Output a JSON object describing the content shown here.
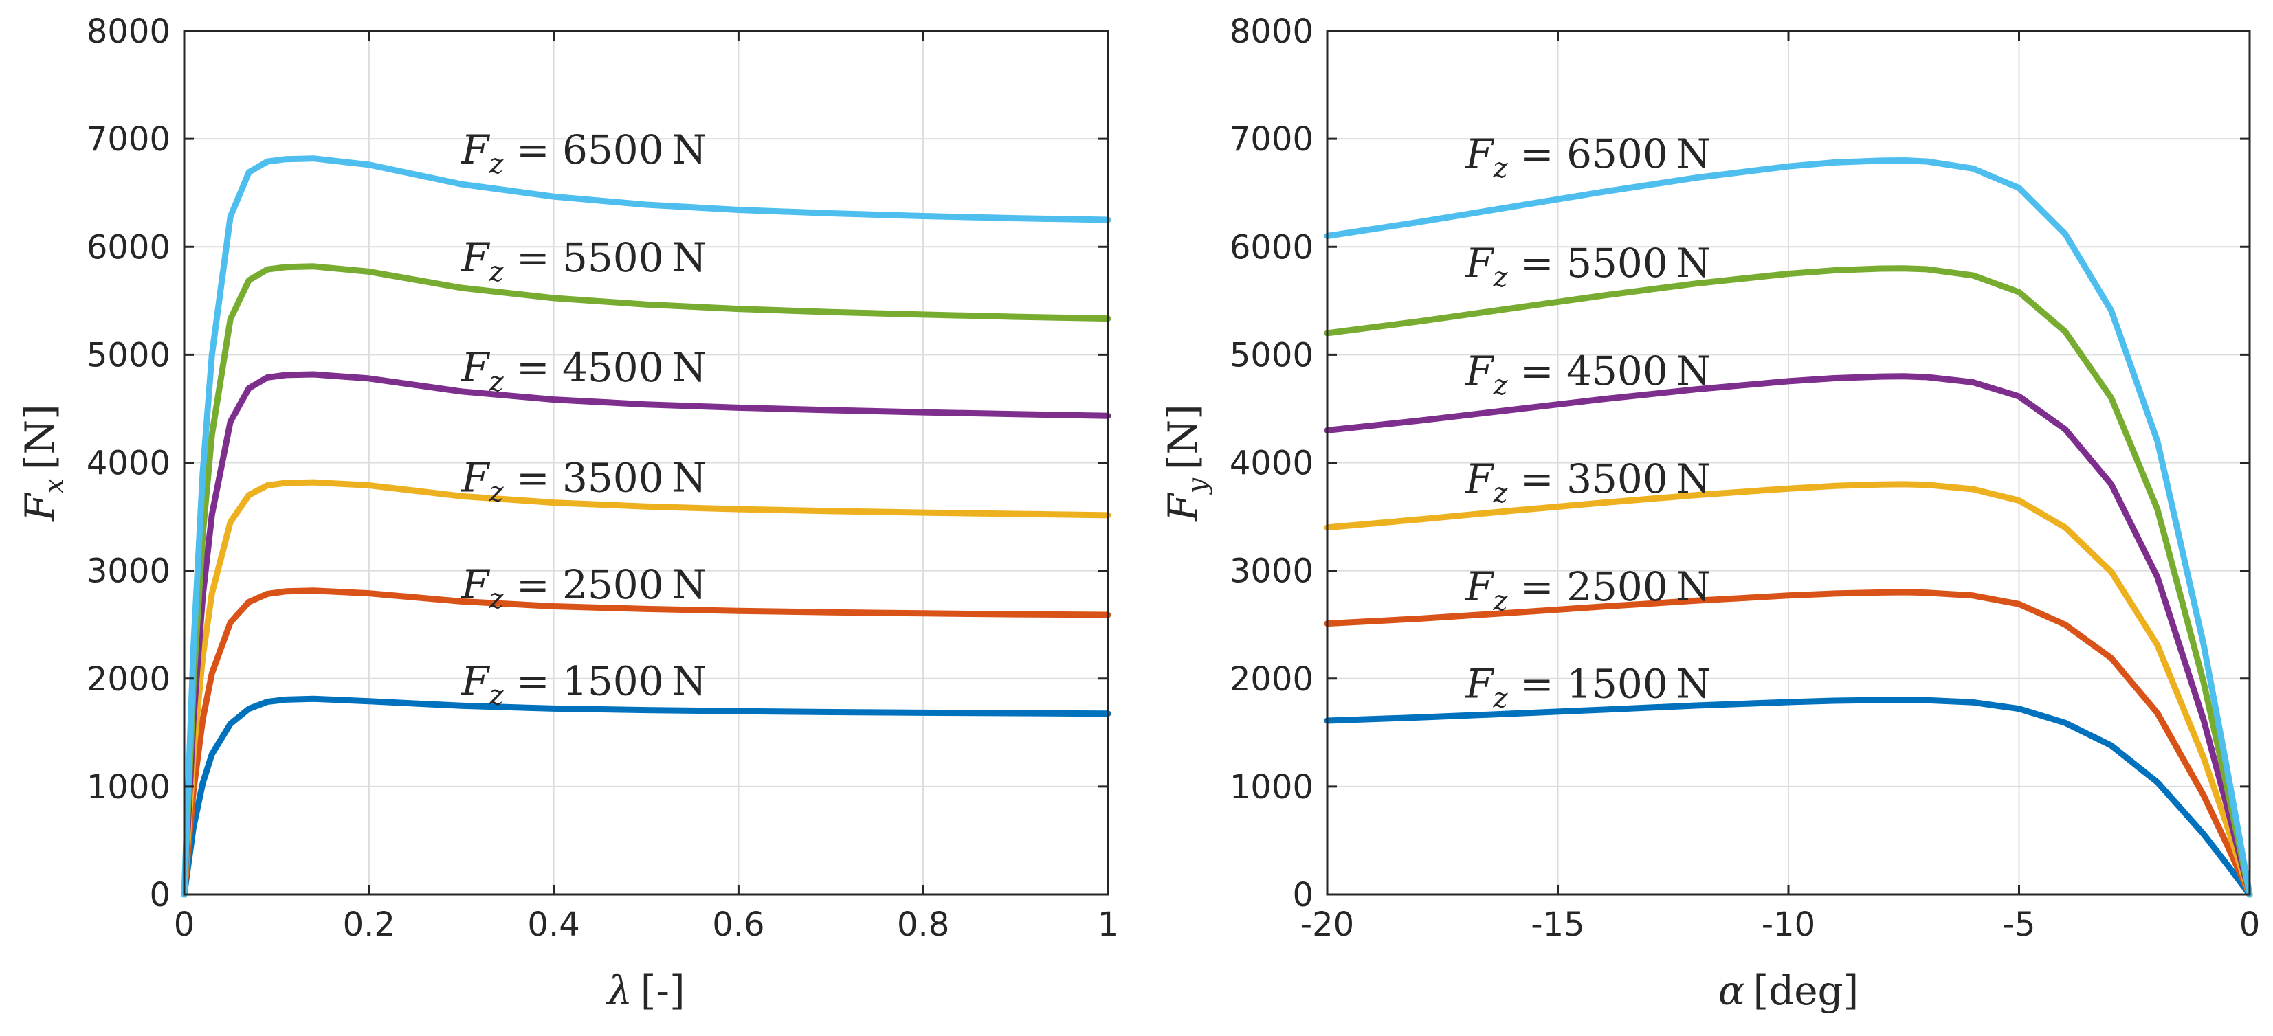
{
  "chart_data": [
    {
      "type": "line",
      "xlabel": {
        "symbol": "λ",
        "unit": "[-]"
      },
      "ylabel": {
        "symbol": "F",
        "sub": "x",
        "unit": "[N]"
      },
      "xlim": [
        0,
        1
      ],
      "ylim": [
        0,
        8000
      ],
      "xticks": [
        0,
        0.2,
        0.4,
        0.6,
        0.8,
        1
      ],
      "xtick_labels": [
        "0",
        "0.2",
        "0.4",
        "0.6",
        "0.8",
        "1"
      ],
      "yticks": [
        0,
        1000,
        2000,
        3000,
        4000,
        5000,
        6000,
        7000,
        8000
      ],
      "ytick_labels": [
        "0",
        "1000",
        "2000",
        "3000",
        "4000",
        "5000",
        "6000",
        "7000",
        "8000"
      ],
      "grid": true,
      "annotation_anchor_x": 0.3,
      "series": [
        {
          "name": "Fz = 1500 N",
          "color": "#0072BD",
          "x": [
            0,
            0.01,
            0.02,
            0.03,
            0.05,
            0.07,
            0.09,
            0.11,
            0.14,
            0.2,
            0.3,
            0.4,
            0.5,
            0.6,
            0.7,
            0.8,
            0.9,
            1.0
          ],
          "y": [
            0,
            620,
            1030,
            1300,
            1580,
            1720,
            1785,
            1805,
            1812,
            1790,
            1748,
            1722,
            1708,
            1698,
            1690,
            1684,
            1680,
            1676
          ],
          "label": {
            "value": "1500",
            "y_pos": 1975
          }
        },
        {
          "name": "Fz = 2500 N",
          "color": "#D95319",
          "x": [
            0,
            0.01,
            0.02,
            0.03,
            0.05,
            0.07,
            0.09,
            0.11,
            0.14,
            0.2,
            0.3,
            0.4,
            0.5,
            0.6,
            0.7,
            0.8,
            0.9,
            1.0
          ],
          "y": [
            0,
            960,
            1620,
            2050,
            2520,
            2710,
            2785,
            2808,
            2815,
            2790,
            2715,
            2670,
            2645,
            2627,
            2614,
            2604,
            2596,
            2590
          ],
          "label": {
            "value": "2500",
            "y_pos": 2870
          }
        },
        {
          "name": "Fz = 3500 N",
          "color": "#EDB120",
          "x": [
            0,
            0.01,
            0.02,
            0.03,
            0.05,
            0.07,
            0.09,
            0.11,
            0.14,
            0.2,
            0.3,
            0.4,
            0.5,
            0.6,
            0.7,
            0.8,
            0.9,
            1.0
          ],
          "y": [
            0,
            1300,
            2200,
            2790,
            3450,
            3700,
            3790,
            3812,
            3818,
            3790,
            3690,
            3630,
            3594,
            3570,
            3552,
            3538,
            3526,
            3514
          ],
          "label": {
            "value": "3500",
            "y_pos": 3860
          }
        },
        {
          "name": "Fz = 4500 N",
          "color": "#7E2F8E",
          "x": [
            0,
            0.01,
            0.02,
            0.03,
            0.05,
            0.07,
            0.09,
            0.11,
            0.14,
            0.2,
            0.3,
            0.4,
            0.5,
            0.6,
            0.7,
            0.8,
            0.9,
            1.0
          ],
          "y": [
            0,
            1620,
            2760,
            3520,
            4380,
            4690,
            4790,
            4812,
            4818,
            4780,
            4660,
            4585,
            4540,
            4510,
            4487,
            4467,
            4450,
            4435
          ],
          "label": {
            "value": "4500",
            "y_pos": 4880
          }
        },
        {
          "name": "Fz = 5500 N",
          "color": "#77AC30",
          "x": [
            0,
            0.01,
            0.02,
            0.03,
            0.05,
            0.07,
            0.09,
            0.11,
            0.14,
            0.2,
            0.3,
            0.4,
            0.5,
            0.6,
            0.7,
            0.8,
            0.9,
            1.0
          ],
          "y": [
            0,
            1950,
            3330,
            4260,
            5330,
            5690,
            5790,
            5812,
            5818,
            5770,
            5620,
            5525,
            5466,
            5425,
            5396,
            5372,
            5352,
            5336
          ],
          "label": {
            "value": "5500",
            "y_pos": 5900
          }
        },
        {
          "name": "Fz = 6500 N",
          "color": "#4DBEEE",
          "x": [
            0,
            0.01,
            0.02,
            0.03,
            0.05,
            0.07,
            0.09,
            0.11,
            0.14,
            0.2,
            0.3,
            0.4,
            0.5,
            0.6,
            0.7,
            0.8,
            0.9,
            1.0
          ],
          "y": [
            0,
            2280,
            3900,
            5000,
            6280,
            6690,
            6790,
            6812,
            6818,
            6760,
            6580,
            6465,
            6390,
            6342,
            6310,
            6285,
            6265,
            6250
          ],
          "label": {
            "value": "6500",
            "y_pos": 6900
          }
        }
      ]
    },
    {
      "type": "line",
      "xlabel": {
        "symbol": "α",
        "unit": "[deg]"
      },
      "ylabel": {
        "symbol": "F",
        "sub": "y",
        "unit": "[N]"
      },
      "xlim": [
        -20,
        0
      ],
      "ylim": [
        0,
        8000
      ],
      "xticks": [
        -20,
        -15,
        -10,
        -5,
        0
      ],
      "xtick_labels": [
        "-20",
        "-15",
        "-10",
        "-5",
        "0"
      ],
      "yticks": [
        0,
        1000,
        2000,
        3000,
        4000,
        5000,
        6000,
        7000,
        8000
      ],
      "ytick_labels": [
        "0",
        "1000",
        "2000",
        "3000",
        "4000",
        "5000",
        "6000",
        "7000",
        "8000"
      ],
      "grid": true,
      "annotation_anchor_x": -17.0,
      "series": [
        {
          "name": "Fz = 1500 N",
          "color": "#0072BD",
          "x": [
            -20,
            -18,
            -16,
            -14,
            -12,
            -10,
            -9,
            -8,
            -7.5,
            -7,
            -6,
            -5,
            -4,
            -3,
            -2,
            -1,
            -0.5,
            0
          ],
          "y": [
            1610,
            1640,
            1675,
            1712,
            1750,
            1782,
            1795,
            1801,
            1802,
            1800,
            1780,
            1720,
            1590,
            1380,
            1040,
            560,
            285,
            0
          ],
          "label": {
            "value": "1500",
            "y_pos": 1950
          }
        },
        {
          "name": "Fz = 2500 N",
          "color": "#D95319",
          "x": [
            -20,
            -18,
            -16,
            -14,
            -12,
            -10,
            -9,
            -8,
            -7.5,
            -7,
            -6,
            -5,
            -4,
            -3,
            -2,
            -1,
            -0.5,
            0
          ],
          "y": [
            2510,
            2555,
            2610,
            2668,
            2722,
            2770,
            2788,
            2798,
            2800,
            2796,
            2770,
            2690,
            2500,
            2190,
            1680,
            920,
            470,
            0
          ],
          "label": {
            "value": "2500",
            "y_pos": 2850
          }
        },
        {
          "name": "Fz = 3500 N",
          "color": "#EDB120",
          "x": [
            -20,
            -18,
            -16,
            -14,
            -12,
            -10,
            -9,
            -8,
            -7.5,
            -7,
            -6,
            -5,
            -4,
            -3,
            -2,
            -1,
            -0.5,
            0
          ],
          "y": [
            3400,
            3475,
            3555,
            3630,
            3700,
            3760,
            3785,
            3798,
            3800,
            3795,
            3755,
            3650,
            3400,
            2990,
            2310,
            1270,
            650,
            0
          ],
          "label": {
            "value": "3500",
            "y_pos": 3850
          }
        },
        {
          "name": "Fz = 4500 N",
          "color": "#7E2F8E",
          "x": [
            -20,
            -18,
            -16,
            -14,
            -12,
            -10,
            -9,
            -8,
            -7.5,
            -7,
            -6,
            -5,
            -4,
            -3,
            -2,
            -1,
            -0.5,
            0
          ],
          "y": [
            4300,
            4390,
            4490,
            4590,
            4680,
            4755,
            4783,
            4798,
            4800,
            4793,
            4745,
            4615,
            4310,
            3800,
            2940,
            1620,
            830,
            0
          ],
          "label": {
            "value": "4500",
            "y_pos": 4850
          }
        },
        {
          "name": "Fz = 5500 N",
          "color": "#77AC30",
          "x": [
            -20,
            -18,
            -16,
            -14,
            -12,
            -10,
            -9,
            -8,
            -7.5,
            -7,
            -6,
            -5,
            -4,
            -3,
            -2,
            -1,
            -0.5,
            0
          ],
          "y": [
            5200,
            5310,
            5430,
            5550,
            5660,
            5750,
            5782,
            5798,
            5800,
            5792,
            5735,
            5580,
            5215,
            4600,
            3570,
            1970,
            1010,
            0
          ],
          "label": {
            "value": "5500",
            "y_pos": 5850
          }
        },
        {
          "name": "Fz = 6500 N",
          "color": "#4DBEEE",
          "x": [
            -20,
            -18,
            -16,
            -14,
            -12,
            -10,
            -9,
            -8,
            -7.5,
            -7,
            -6,
            -5,
            -4,
            -3,
            -2,
            -1,
            -0.5,
            0
          ],
          "y": [
            6100,
            6230,
            6370,
            6510,
            6640,
            6745,
            6782,
            6798,
            6800,
            6791,
            6725,
            6545,
            6120,
            5410,
            4200,
            2320,
            1190,
            0
          ],
          "label": {
            "value": "6500",
            "y_pos": 6860
          }
        }
      ]
    }
  ],
  "annotation_text": {
    "lhs": "F",
    "sub": "z",
    "eq": "=",
    "unit": "N"
  }
}
